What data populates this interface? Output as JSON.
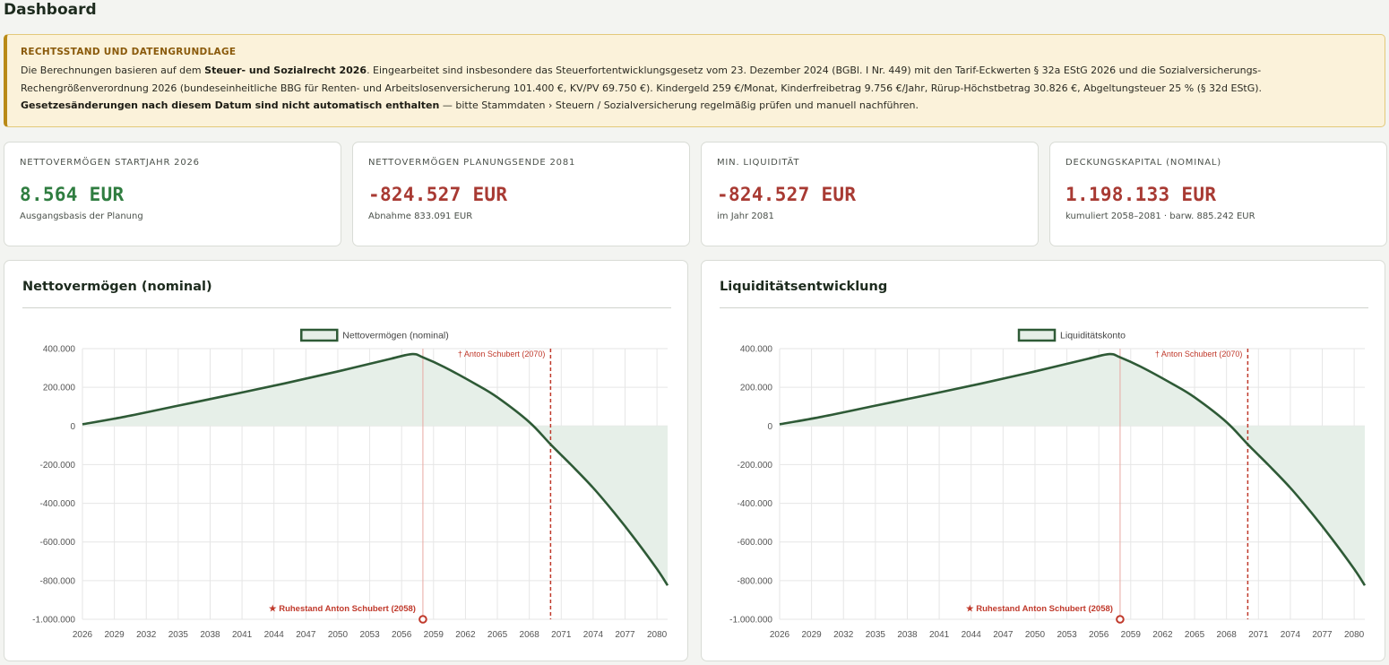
{
  "page": {
    "title": "Dashboard"
  },
  "notice": {
    "title": "RECHTSSTAND UND DATENGRUNDLAGE",
    "line1_a": "Die Berechnungen basieren auf dem ",
    "line1_b": "Steuer- und Sozialrecht 2026",
    "line1_c": ". Eingearbeitet sind insbesondere das Steuerfortentwicklungsgesetz vom 23. Dezember 2024 (BGBl. I Nr. 449) mit den Tarif-Eckwerten § 32a EStG 2026 und die Sozialversicherungs-Rechengrößenverordnung 2026 (bundeseinheitliche BBG für Renten- und Arbeitslosenversicherung 101.400 €, KV/PV 69.750 €). Kindergeld 259 €/Monat, Kinderfreibetrag 9.756 €/Jahr, Rürup-Höchstbetrag 30.826 €, Abgeltungsteuer 25 % (§ 32d EStG).",
    "line3_a": "Gesetzesänderungen nach diesem Datum sind nicht automatisch enthalten",
    "line3_b": " — bitte Stammdaten › Steuern / Sozialversicherung regelmäßig prüfen und manuell nachführen."
  },
  "kpis": [
    {
      "label": "Nettovermögen Startjahr 2026",
      "value": "8.564 EUR",
      "sub": "Ausgangsbasis der Planung",
      "tone": "positive"
    },
    {
      "label": "Nettovermögen Planungsende 2081",
      "value": "-824.527 EUR",
      "sub": "Abnahme 833.091 EUR",
      "tone": "negative"
    },
    {
      "label": "Min. Liquidität",
      "value": "-824.527 EUR",
      "sub": "im Jahr 2081",
      "tone": "negative"
    },
    {
      "label": "Deckungskapital (nominal)",
      "value": "1.198.133 EUR",
      "sub": "kumuliert 2058–2081 · barw. 885.242 EUR",
      "tone": "negative"
    }
  ],
  "colors": {
    "line": "#2e5a36",
    "fill": "#e6efe8",
    "marker_red": "#c0392b",
    "positive": "#2f7d40",
    "negative": "#a83a33"
  },
  "chart_data": [
    {
      "type": "area",
      "title": "Nettovermögen (nominal)",
      "legend": "Nettovermögen (nominal)",
      "legend_position": "top",
      "x_ticks": [
        "2026",
        "2029",
        "2032",
        "2035",
        "2038",
        "2041",
        "2044",
        "2047",
        "2050",
        "2053",
        "2056",
        "2059",
        "2062",
        "2065",
        "2068",
        "2071",
        "2074",
        "2077",
        "2080"
      ],
      "y_ticks": [
        "400.000",
        "200.000",
        "0",
        "-200.000",
        "-400.000",
        "-600.000",
        "-800.000",
        "-1.000.000"
      ],
      "ylim": [
        -1000000,
        400000
      ],
      "xlim": [
        2026,
        2081
      ],
      "grid": true,
      "series": [
        {
          "x": [
            2026,
            2030,
            2035,
            2040,
            2045,
            2050,
            2055,
            2057,
            2058,
            2060,
            2063,
            2065,
            2068,
            2070,
            2072,
            2074,
            2076,
            2078,
            2080,
            2081
          ],
          "values": [
            8564,
            48000,
            105000,
            162000,
            220000,
            282000,
            348000,
            372000,
            355000,
            305000,
            215000,
            148000,
            20000,
            -95000,
            -205000,
            -320000,
            -450000,
            -590000,
            -740000,
            -824527
          ]
        }
      ],
      "annotations": {
        "retirement_label": "★ Ruhestand Anton Schubert (2058)",
        "retirement_year": 2058,
        "death_label": "† Anton Schubert (2070)",
        "death_year": 2070
      }
    },
    {
      "type": "area",
      "title": "Liquiditätsentwicklung",
      "legend": "Liquiditätskonto",
      "legend_position": "top",
      "x_ticks": [
        "2026",
        "2029",
        "2032",
        "2035",
        "2038",
        "2041",
        "2044",
        "2047",
        "2050",
        "2053",
        "2056",
        "2059",
        "2062",
        "2065",
        "2068",
        "2071",
        "2074",
        "2077",
        "2080"
      ],
      "y_ticks": [
        "400.000",
        "200.000",
        "0",
        "-200.000",
        "-400.000",
        "-600.000",
        "-800.000",
        "-1.000.000"
      ],
      "ylim": [
        -1000000,
        400000
      ],
      "xlim": [
        2026,
        2081
      ],
      "grid": true,
      "series": [
        {
          "x": [
            2026,
            2030,
            2035,
            2040,
            2045,
            2050,
            2055,
            2057,
            2058,
            2060,
            2063,
            2065,
            2068,
            2070,
            2072,
            2074,
            2076,
            2078,
            2080,
            2081
          ],
          "values": [
            8564,
            48000,
            105000,
            162000,
            220000,
            282000,
            348000,
            372000,
            355000,
            305000,
            215000,
            148000,
            20000,
            -95000,
            -205000,
            -320000,
            -450000,
            -590000,
            -740000,
            -824527
          ]
        }
      ],
      "annotations": {
        "retirement_label": "★ Ruhestand Anton Schubert (2058)",
        "retirement_year": 2058,
        "death_label": "† Anton Schubert (2070)",
        "death_year": 2070
      }
    }
  ]
}
